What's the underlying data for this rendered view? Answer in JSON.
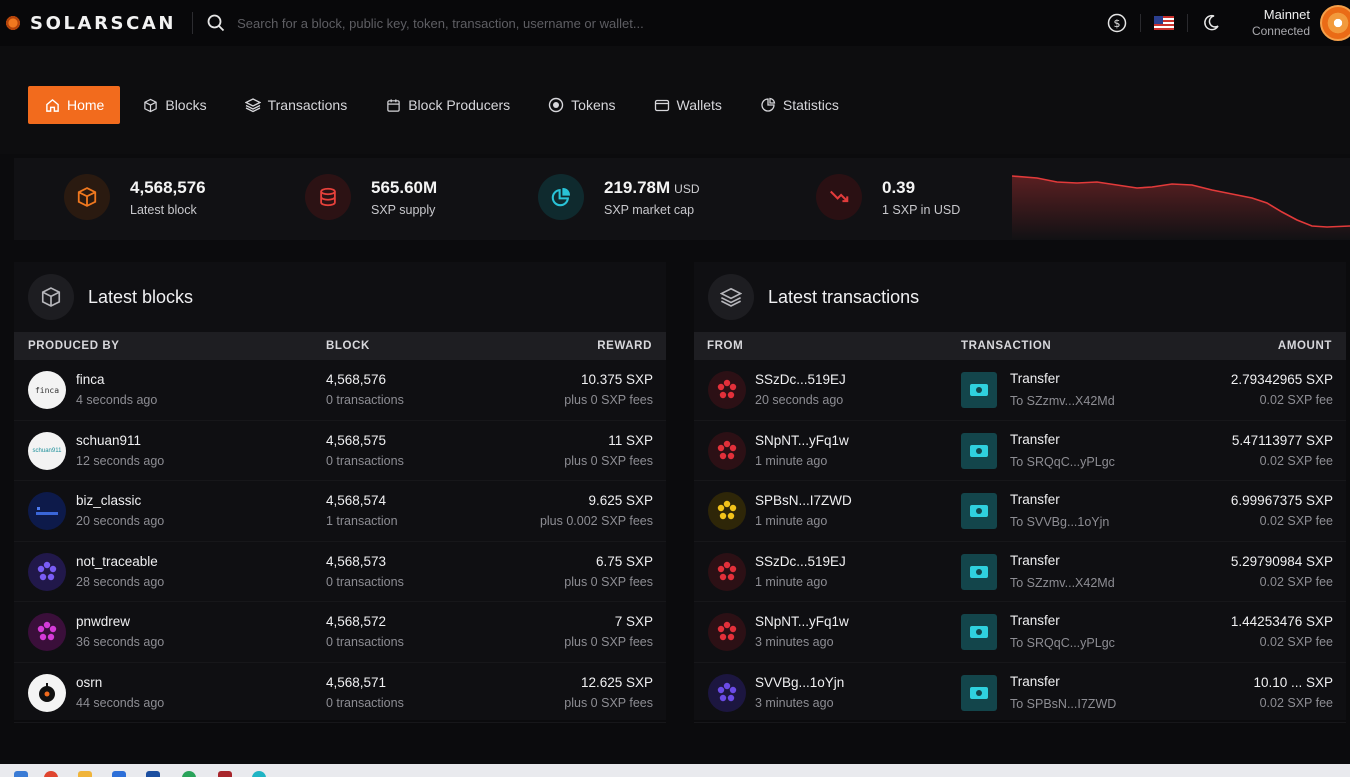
{
  "header": {
    "brand": "SOLARSCAN",
    "search_placeholder": "Search for a block, public key, token, transaction, username or wallet...",
    "network_name": "Mainnet",
    "network_status": "Connected"
  },
  "nav": {
    "items": [
      {
        "label": "Home",
        "icon": "home-icon",
        "active": true
      },
      {
        "label": "Blocks",
        "icon": "cube-icon"
      },
      {
        "label": "Transactions",
        "icon": "layers-icon"
      },
      {
        "label": "Block Producers",
        "icon": "calendar-icon"
      },
      {
        "label": "Tokens",
        "icon": "token-icon"
      },
      {
        "label": "Wallets",
        "icon": "wallet-icon"
      },
      {
        "label": "Statistics",
        "icon": "chart-icon"
      }
    ]
  },
  "stats": [
    {
      "value": "4,568,576",
      "unit": "",
      "label": "Latest block",
      "icon": "cube-icon",
      "color": "#f0781f"
    },
    {
      "value": "565.60M",
      "unit": "",
      "label": "SXP supply",
      "icon": "coins-icon",
      "color": "#e8413b"
    },
    {
      "value": "219.78M",
      "unit": "USD",
      "label": "SXP market cap",
      "icon": "pie-icon",
      "color": "#29c2d6"
    },
    {
      "value": "0.39",
      "unit": "",
      "label": "1 SXP in USD",
      "icon": "trend-down-icon",
      "color": "#e13b3b"
    }
  ],
  "latest_blocks": {
    "title": "Latest blocks",
    "columns": [
      "PRODUCED BY",
      "BLOCK",
      "REWARD"
    ],
    "rows": [
      {
        "name": "finca",
        "time": "4 seconds ago",
        "block": "4,568,576",
        "tx": "0 transactions",
        "reward": "10.375 SXP",
        "fees": "plus 0 SXP fees",
        "avatar": "finca"
      },
      {
        "name": "schuan911",
        "time": "12 seconds ago",
        "block": "4,568,575",
        "tx": "0 transactions",
        "reward": "11 SXP",
        "fees": "plus 0 SXP fees",
        "avatar": "schuan911"
      },
      {
        "name": "biz_classic",
        "time": "20 seconds ago",
        "block": "4,568,574",
        "tx": "1 transaction",
        "reward": "9.625 SXP",
        "fees": "plus 0.002 SXP fees",
        "avatar": "biz"
      },
      {
        "name": "not_traceable",
        "time": "28 seconds ago",
        "block": "4,568,573",
        "tx": "0 transactions",
        "reward": "6.75 SXP",
        "fees": "plus 0 SXP fees",
        "avatar": "violet"
      },
      {
        "name": "pnwdrew",
        "time": "36 seconds ago",
        "block": "4,568,572",
        "tx": "0 transactions",
        "reward": "7 SXP",
        "fees": "plus 0 SXP fees",
        "avatar": "magenta"
      },
      {
        "name": "osrn",
        "time": "44 seconds ago",
        "block": "4,568,571",
        "tx": "0 transactions",
        "reward": "12.625 SXP",
        "fees": "plus 0 SXP fees",
        "avatar": "osrn"
      }
    ]
  },
  "latest_transactions": {
    "title": "Latest transactions",
    "columns": [
      "FROM",
      "TRANSACTION",
      "AMOUNT"
    ],
    "rows": [
      {
        "from": "SSzDc...519EJ",
        "time": "20 seconds ago",
        "type": "Transfer",
        "to": "To SZzmv...X42Md",
        "amount": "2.79342965 SXP",
        "fee": "0.02 SXP fee",
        "color": "#e2303a"
      },
      {
        "from": "SNpNT...yFq1w",
        "time": "1 minute ago",
        "type": "Transfer",
        "to": "To SRQqC...yPLgc",
        "amount": "5.47113977 SXP",
        "fee": "0.02 SXP fee",
        "color": "#e2303a"
      },
      {
        "from": "SPBsN...I7ZWD",
        "time": "1 minute ago",
        "type": "Transfer",
        "to": "To SVVBg...1oYjn",
        "amount": "6.99967375 SXP",
        "fee": "0.02 SXP fee",
        "color": "#f2c21a"
      },
      {
        "from": "SSzDc...519EJ",
        "time": "1 minute ago",
        "type": "Transfer",
        "to": "To SZzmv...X42Md",
        "amount": "5.29790984 SXP",
        "fee": "0.02 SXP fee",
        "color": "#e2303a"
      },
      {
        "from": "SNpNT...yFq1w",
        "time": "3 minutes ago",
        "type": "Transfer",
        "to": "To SRQqC...yPLgc",
        "amount": "1.44253476 SXP",
        "fee": "0.02 SXP fee",
        "color": "#e2303a"
      },
      {
        "from": "SVVBg...1oYjn",
        "time": "3 minutes ago",
        "type": "Transfer",
        "to": "To SPBsN...I7ZWD",
        "amount": "10.10 ... SXP",
        "fee": "0.02 SXP fee",
        "color": "#6b4be6"
      }
    ]
  },
  "colors": {
    "accent": "#f26b1d",
    "chart_line": "#e23a3a"
  }
}
